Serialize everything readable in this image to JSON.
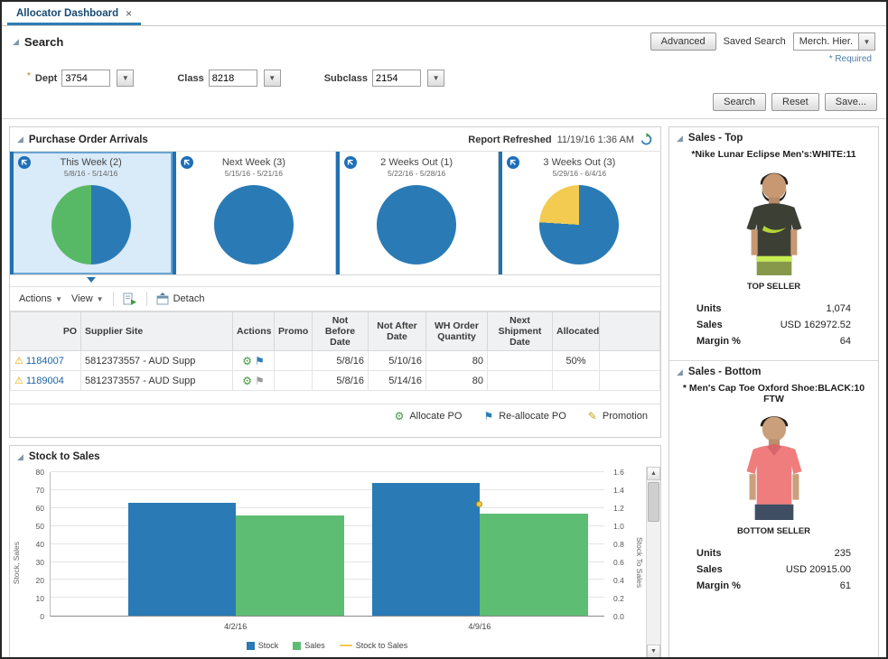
{
  "tab_bar": {
    "tab_label": "Allocator Dashboard",
    "close": "×"
  },
  "search": {
    "title": "Search",
    "advanced": "Advanced",
    "saved_search_label": "Saved Search",
    "saved_search_value": "Merch. Hier.",
    "required_note": "* Required",
    "dept_label": "Dept",
    "dept_value": "3754",
    "class_label": "Class",
    "class_value": "8218",
    "subclass_label": "Subclass",
    "subclass_value": "2154",
    "search_btn": "Search",
    "reset_btn": "Reset",
    "save_btn": "Save..."
  },
  "po_panel": {
    "title": "Purchase Order Arrivals",
    "refreshed_label": "Report Refreshed",
    "refreshed_time": "11/19/16 1:36 AM",
    "cards": [
      {
        "title": "This Week (2)",
        "range": "5/8/16 - 5/14/16",
        "selected": true,
        "slices": [
          {
            "color": "#2a7ab5",
            "pct": 50
          },
          {
            "color": "#57b965",
            "pct": 50
          }
        ]
      },
      {
        "title": "Next Week (3)",
        "range": "5/15/16 - 5/21/16",
        "selected": false,
        "slices": [
          {
            "color": "#2a7ab5",
            "pct": 100
          }
        ]
      },
      {
        "title": "2 Weeks Out (1)",
        "range": "5/22/16 - 5/28/16",
        "selected": false,
        "slices": [
          {
            "color": "#2a7ab5",
            "pct": 100
          }
        ]
      },
      {
        "title": "3 Weeks Out (3)",
        "range": "5/29/16 - 6/4/16",
        "selected": false,
        "slices": [
          {
            "color": "#2a7ab5",
            "pct": 76
          },
          {
            "color": "#f3cb51",
            "pct": 24
          }
        ]
      }
    ],
    "toolbar": {
      "actions": "Actions",
      "view": "View",
      "detach": "Detach"
    },
    "columns": {
      "po": "PO",
      "supplier": "Supplier Site",
      "actions": "Actions",
      "promo": "Promo",
      "not_before": "Not Before Date",
      "not_after": "Not After Date",
      "wh_qty": "WH Order Quantity",
      "next_ship": "Next Shipment Date",
      "allocated": "Allocated"
    },
    "rows": [
      {
        "po": "1184007",
        "supplier": "5812373557 - AUD Supp",
        "not_before": "5/8/16",
        "not_after": "5/10/16",
        "wh_qty": "80",
        "next_ship": "",
        "allocated": "50%"
      },
      {
        "po": "1189004",
        "supplier": "5812373557 - AUD Supp",
        "not_before": "5/8/16",
        "not_after": "5/14/16",
        "wh_qty": "80",
        "next_ship": "",
        "allocated": ""
      }
    ],
    "legend": {
      "allocate": "Allocate PO",
      "reallocate": "Re-allocate PO",
      "promotion": "Promotion"
    }
  },
  "chart_data": {
    "type": "bar",
    "title": "Stock to Sales",
    "categories": [
      "4/2/16",
      "4/9/16"
    ],
    "series": [
      {
        "name": "Stock",
        "color": "#2a7ab5",
        "values": [
          63,
          74
        ]
      },
      {
        "name": "Sales",
        "color": "#5dbd72",
        "values": [
          56,
          57
        ]
      }
    ],
    "line_series": {
      "name": "Stock to Sales",
      "color": "#f3cb51",
      "points": [
        {
          "category": "4/9/16",
          "value": 1.25
        }
      ]
    },
    "ylabel_left": "Stock, Sales",
    "ylabel_right": "Stock To Sales",
    "ylim_left": [
      0,
      80
    ],
    "ytick_step_left": 10,
    "ylim_right": [
      0,
      1.6
    ],
    "ytick_step_right": 0.2,
    "grid": true,
    "legend_position": "bottom"
  },
  "sales_top": {
    "title": "Sales - Top",
    "product": "*Nike Lunar Eclipse Men's:WHITE:11",
    "seller": "TOP SELLER",
    "units_label": "Units",
    "units": "1,074",
    "sales_label": "Sales",
    "sales": "USD 162972.52",
    "margin_label": "Margin %",
    "margin": "64"
  },
  "sales_bottom": {
    "title": "Sales - Bottom",
    "product": "* Men's Cap Toe Oxford Shoe:BLACK:10 FTW",
    "seller": "BOTTOM SELLER",
    "units_label": "Units",
    "units": "235",
    "sales_label": "Sales",
    "sales": "USD 20915.00",
    "margin_label": "Margin %",
    "margin": "61"
  }
}
